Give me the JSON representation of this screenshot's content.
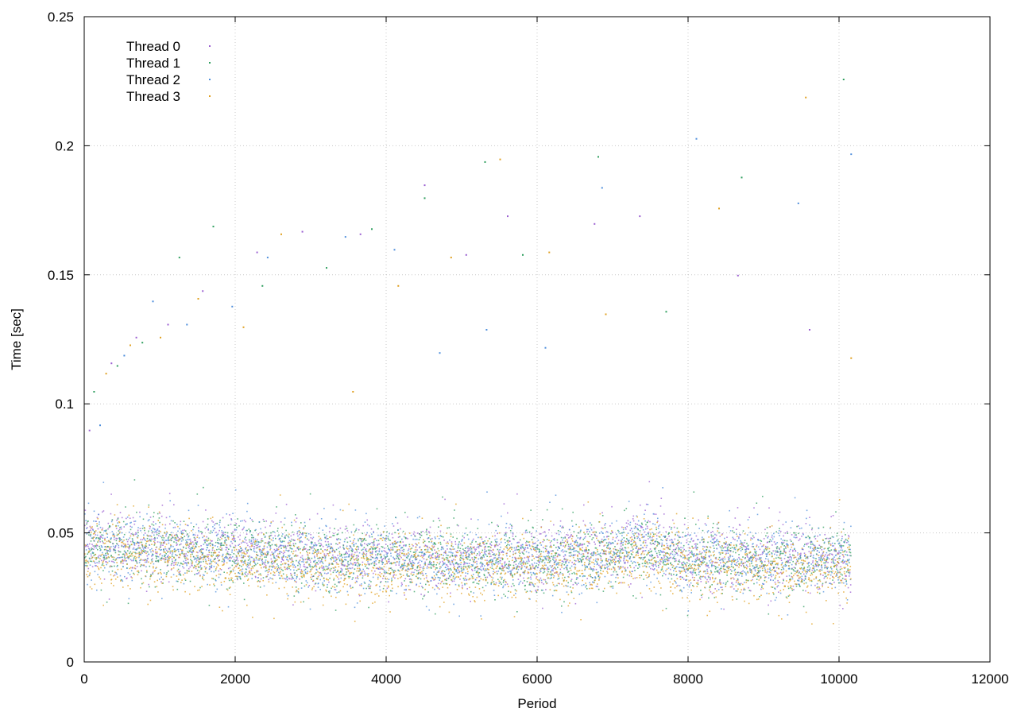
{
  "chart_data": {
    "type": "scatter",
    "title": "",
    "xlabel": "Period",
    "ylabel": "Time [sec]",
    "xlim": [
      0,
      12000
    ],
    "ylim": [
      0,
      0.25
    ],
    "x_ticks": [
      "0",
      "2000",
      "4000",
      "6000",
      "8000",
      "10000",
      "12000"
    ],
    "y_ticks": [
      "0",
      "0.05",
      "0.1",
      "0.15",
      "0.2",
      "0.25"
    ],
    "grid": true,
    "legend_position": "top-left",
    "n_periods": 10150,
    "series": [
      {
        "name": "Thread 0",
        "color": "#9b5fd1",
        "base": 0.044,
        "spread": 0.006
      },
      {
        "name": "Thread 1",
        "color": "#2e9e5e",
        "base": 0.043,
        "spread": 0.006
      },
      {
        "name": "Thread 2",
        "color": "#4f8fdc",
        "base": 0.043,
        "spread": 0.006
      },
      {
        "name": "Thread 3",
        "color": "#e0a020",
        "base": 0.04,
        "spread": 0.006
      }
    ],
    "trend": [
      [
        0,
        0.046
      ],
      [
        1000,
        0.044
      ],
      [
        2000,
        0.043
      ],
      [
        3000,
        0.041
      ],
      [
        3500,
        0.04
      ],
      [
        4000,
        0.041
      ],
      [
        5000,
        0.04
      ],
      [
        6000,
        0.04
      ],
      [
        7000,
        0.042
      ],
      [
        7400,
        0.046
      ],
      [
        8000,
        0.04
      ],
      [
        9000,
        0.04
      ],
      [
        10000,
        0.04
      ],
      [
        10150,
        0.04
      ]
    ],
    "outliers": [
      [
        60,
        0.09
      ],
      [
        120,
        0.105
      ],
      [
        200,
        0.092
      ],
      [
        280,
        0.112
      ],
      [
        350,
        0.116
      ],
      [
        430,
        0.115
      ],
      [
        520,
        0.119
      ],
      [
        600,
        0.123
      ],
      [
        680,
        0.126
      ],
      [
        760,
        0.124
      ],
      [
        900,
        0.14
      ],
      [
        1000,
        0.126
      ],
      [
        1100,
        0.131
      ],
      [
        1250,
        0.157
      ],
      [
        1350,
        0.131
      ],
      [
        1500,
        0.141
      ],
      [
        1560,
        0.144
      ],
      [
        1700,
        0.169
      ],
      [
        1950,
        0.138
      ],
      [
        2100,
        0.13
      ],
      [
        2280,
        0.159
      ],
      [
        2350,
        0.146
      ],
      [
        2420,
        0.157
      ],
      [
        2600,
        0.166
      ],
      [
        2880,
        0.167
      ],
      [
        3200,
        0.153
      ],
      [
        3450,
        0.165
      ],
      [
        3550,
        0.105
      ],
      [
        3650,
        0.166
      ],
      [
        3800,
        0.168
      ],
      [
        4100,
        0.16
      ],
      [
        4150,
        0.146
      ],
      [
        4500,
        0.185
      ],
      [
        4500,
        0.18
      ],
      [
        4700,
        0.12
      ],
      [
        4850,
        0.157
      ],
      [
        5050,
        0.158
      ],
      [
        5300,
        0.194
      ],
      [
        5320,
        0.129
      ],
      [
        5500,
        0.195
      ],
      [
        5600,
        0.173
      ],
      [
        5800,
        0.158
      ],
      [
        6100,
        0.122
      ],
      [
        6150,
        0.159
      ],
      [
        6750,
        0.17
      ],
      [
        6800,
        0.196
      ],
      [
        6850,
        0.184
      ],
      [
        6900,
        0.135
      ],
      [
        7350,
        0.173
      ],
      [
        7700,
        0.136
      ],
      [
        8100,
        0.203
      ],
      [
        8400,
        0.176
      ],
      [
        8650,
        0.15
      ],
      [
        8700,
        0.188
      ],
      [
        9450,
        0.178
      ],
      [
        9550,
        0.219
      ],
      [
        9600,
        0.129
      ],
      [
        10050,
        0.226
      ],
      [
        10150,
        0.197
      ],
      [
        10150,
        0.118
      ]
    ]
  }
}
